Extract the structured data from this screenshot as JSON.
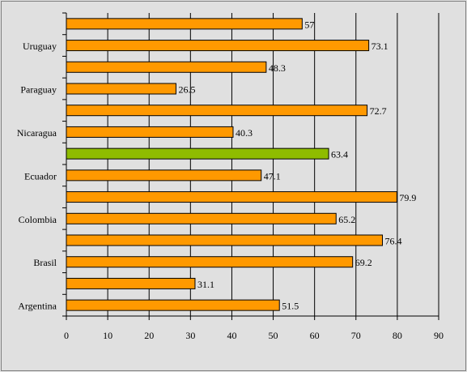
{
  "chart_data": {
    "type": "bar",
    "orientation": "horizontal",
    "categories": [
      "Argentina",
      "",
      "Brasil",
      "",
      "Colombia",
      "",
      "Ecuador",
      "",
      "Nicaragua",
      "",
      "Paraguay",
      "",
      "Uruguay",
      ""
    ],
    "series": [
      {
        "values": [
          51.5,
          31.1,
          69.2,
          76.4,
          65.2,
          79.9,
          47.1,
          63.4,
          40.3,
          72.7,
          26.5,
          48.3,
          73.1,
          57
        ],
        "labels": [
          "51.5",
          "31.1",
          "69.2",
          "76.4",
          "65.2",
          "79.9",
          "47.1",
          "63.4",
          "40.3",
          "72.7",
          "26.5",
          "48.3",
          "73.1",
          "57"
        ]
      }
    ],
    "bar_colors": [
      "#ff9900",
      "#ff9900",
      "#ff9900",
      "#ff9900",
      "#ff9900",
      "#ff9900",
      "#ff9900",
      "#8fbc00",
      "#ff9900",
      "#ff9900",
      "#ff9900",
      "#ff9900",
      "#ff9900",
      "#ff9900"
    ],
    "xlim": [
      0,
      90
    ],
    "xticks": [
      0,
      10,
      20,
      30,
      40,
      50,
      60,
      70,
      80,
      90
    ],
    "xtick_labels": [
      "0",
      "10",
      "20",
      "30",
      "40",
      "50",
      "60",
      "70",
      "80",
      "90"
    ],
    "grid": "vertical",
    "title": "",
    "xlabel": "",
    "ylabel": "",
    "colors": {
      "background": "#e0e0e0",
      "plot_area": "#e0e0e0",
      "gridline": "#000000"
    }
  }
}
